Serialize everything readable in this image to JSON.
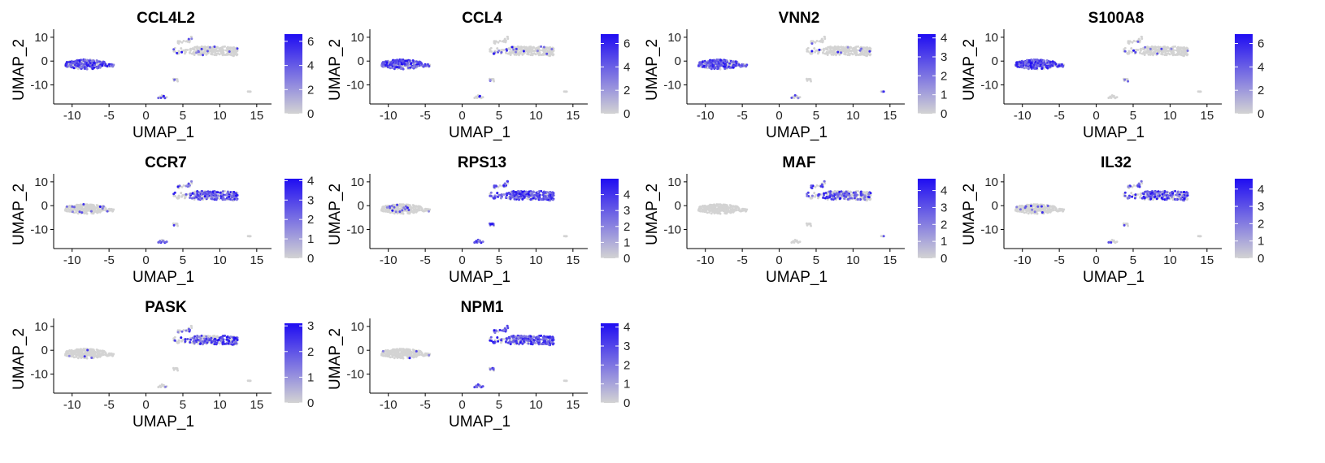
{
  "colors": {
    "low": "#d3d3d3",
    "high": "#1f0df2",
    "axis": "#000000"
  },
  "chart_data": [
    {
      "type": "scatter",
      "title": "CCL4L2",
      "xlabel": "UMAP_1",
      "ylabel": "UMAP_2",
      "xticks": [
        -10,
        -5,
        0,
        5,
        10,
        15
      ],
      "yticks": [
        -10,
        0,
        10
      ],
      "xlim": [
        -12.5,
        17
      ],
      "ylim": [
        -18,
        12
      ],
      "colorbar_ticks": [
        0,
        2,
        4,
        6
      ],
      "colorbar_max": 6.6,
      "expression": {
        "left": 0.55,
        "topleft": 0.08,
        "topright": 0.03,
        "small": 0.1,
        "bottom": 0.1,
        "far": 0.0
      }
    },
    {
      "type": "scatter",
      "title": "CCL4",
      "xlabel": "UMAP_1",
      "ylabel": "UMAP_2",
      "xticks": [
        -10,
        -5,
        0,
        5,
        10,
        15
      ],
      "yticks": [
        -10,
        0,
        10
      ],
      "xlim": [
        -12.5,
        17
      ],
      "ylim": [
        -18,
        12
      ],
      "colorbar_ticks": [
        0,
        2,
        4,
        6
      ],
      "colorbar_max": 6.8,
      "expression": {
        "left": 0.5,
        "topleft": 0.15,
        "topright": 0.03,
        "small": 0.1,
        "bottom": 0.05,
        "far": 0.0
      }
    },
    {
      "type": "scatter",
      "title": "VNN2",
      "xlabel": "UMAP_1",
      "ylabel": "UMAP_2",
      "xticks": [
        -10,
        -5,
        0,
        5,
        10,
        15
      ],
      "yticks": [
        -10,
        0,
        10
      ],
      "xlim": [
        -12.5,
        17
      ],
      "ylim": [
        -18,
        12
      ],
      "colorbar_ticks": [
        0,
        1,
        2,
        3,
        4
      ],
      "colorbar_max": 4.2,
      "expression": {
        "left": 0.55,
        "topleft": 0.05,
        "topright": 0.02,
        "small": 0.05,
        "bottom": 0.03,
        "far": 0.2
      }
    },
    {
      "type": "scatter",
      "title": "S100A8",
      "xlabel": "UMAP_1",
      "ylabel": "UMAP_2",
      "xticks": [
        -10,
        -5,
        0,
        5,
        10,
        15
      ],
      "yticks": [
        -10,
        0,
        10
      ],
      "xlim": [
        -12.5,
        17
      ],
      "ylim": [
        -18,
        12
      ],
      "colorbar_ticks": [
        0,
        2,
        4,
        6
      ],
      "colorbar_max": 6.8,
      "expression": {
        "left": 0.7,
        "topleft": 0.03,
        "topright": 0.03,
        "small": 0.3,
        "bottom": 0.02,
        "far": 0.0
      }
    },
    {
      "type": "scatter",
      "title": "CCR7",
      "xlabel": "UMAP_1",
      "ylabel": "UMAP_2",
      "xticks": [
        -10,
        -5,
        0,
        5,
        10,
        15
      ],
      "yticks": [
        -10,
        0,
        10
      ],
      "xlim": [
        -12.5,
        17
      ],
      "ylim": [
        -18,
        12
      ],
      "colorbar_ticks": [
        0,
        1,
        2,
        3,
        4
      ],
      "colorbar_max": 4.1,
      "expression": {
        "left": 0.04,
        "topleft": 0.3,
        "topright": 0.6,
        "small": 0.1,
        "bottom": 0.7,
        "far": 0.0
      }
    },
    {
      "type": "scatter",
      "title": "RPS13",
      "xlabel": "UMAP_1",
      "ylabel": "UMAP_2",
      "xticks": [
        -10,
        -5,
        0,
        5,
        10,
        15
      ],
      "yticks": [
        -10,
        0,
        10
      ],
      "xlim": [
        -12.5,
        17
      ],
      "ylim": [
        -18,
        12
      ],
      "colorbar_ticks": [
        0,
        1,
        2,
        3,
        4
      ],
      "colorbar_max": 5.0,
      "expression": {
        "left": 0.05,
        "topleft": 0.8,
        "topright": 0.8,
        "small": 0.7,
        "bottom": 0.75,
        "far": 0.0
      }
    },
    {
      "type": "scatter",
      "title": "MAF",
      "xlabel": "UMAP_1",
      "ylabel": "UMAP_2",
      "xticks": [
        -10,
        -5,
        0,
        5,
        10,
        15
      ],
      "yticks": [
        -10,
        0,
        10
      ],
      "xlim": [
        -12.5,
        17
      ],
      "ylim": [
        -18,
        12
      ],
      "colorbar_ticks": [
        0,
        1,
        2,
        3,
        4
      ],
      "colorbar_max": 4.7,
      "expression": {
        "left": 0.0,
        "topleft": 0.3,
        "topright": 0.35,
        "small": 0.05,
        "bottom": 0.0,
        "far": 0.2
      }
    },
    {
      "type": "scatter",
      "title": "IL32",
      "xlabel": "UMAP_1",
      "ylabel": "UMAP_2",
      "xticks": [
        -10,
        -5,
        0,
        5,
        10,
        15
      ],
      "yticks": [
        -10,
        0,
        10
      ],
      "xlim": [
        -12.5,
        17
      ],
      "ylim": [
        -18,
        12
      ],
      "colorbar_ticks": [
        0,
        1,
        2,
        3,
        4
      ],
      "colorbar_max": 4.6,
      "expression": {
        "left": 0.01,
        "topleft": 0.45,
        "topright": 0.45,
        "small": 0.1,
        "bottom": 0.05,
        "far": 0.0
      }
    },
    {
      "type": "scatter",
      "title": "PASK",
      "xlabel": "UMAP_1",
      "ylabel": "UMAP_2",
      "xticks": [
        -10,
        -5,
        0,
        5,
        10,
        15
      ],
      "yticks": [
        -10,
        0,
        10
      ],
      "xlim": [
        -12.5,
        17
      ],
      "ylim": [
        -18,
        12
      ],
      "colorbar_ticks": [
        0,
        1,
        2,
        3
      ],
      "colorbar_max": 3.1,
      "expression": {
        "left": 0.01,
        "topleft": 0.4,
        "topright": 0.4,
        "small": 0.05,
        "bottom": 0.15,
        "far": 0.0
      }
    },
    {
      "type": "scatter",
      "title": "NPM1",
      "xlabel": "UMAP_1",
      "ylabel": "UMAP_2",
      "xticks": [
        -10,
        -5,
        0,
        5,
        10,
        15
      ],
      "yticks": [
        -10,
        0,
        10
      ],
      "xlim": [
        -12.5,
        17
      ],
      "ylim": [
        -18,
        12
      ],
      "colorbar_ticks": [
        0,
        1,
        2,
        3,
        4
      ],
      "colorbar_max": 4.2,
      "expression": {
        "left": 0.02,
        "topleft": 0.6,
        "topright": 0.7,
        "small": 0.3,
        "bottom": 0.7,
        "far": 0.0
      }
    }
  ]
}
